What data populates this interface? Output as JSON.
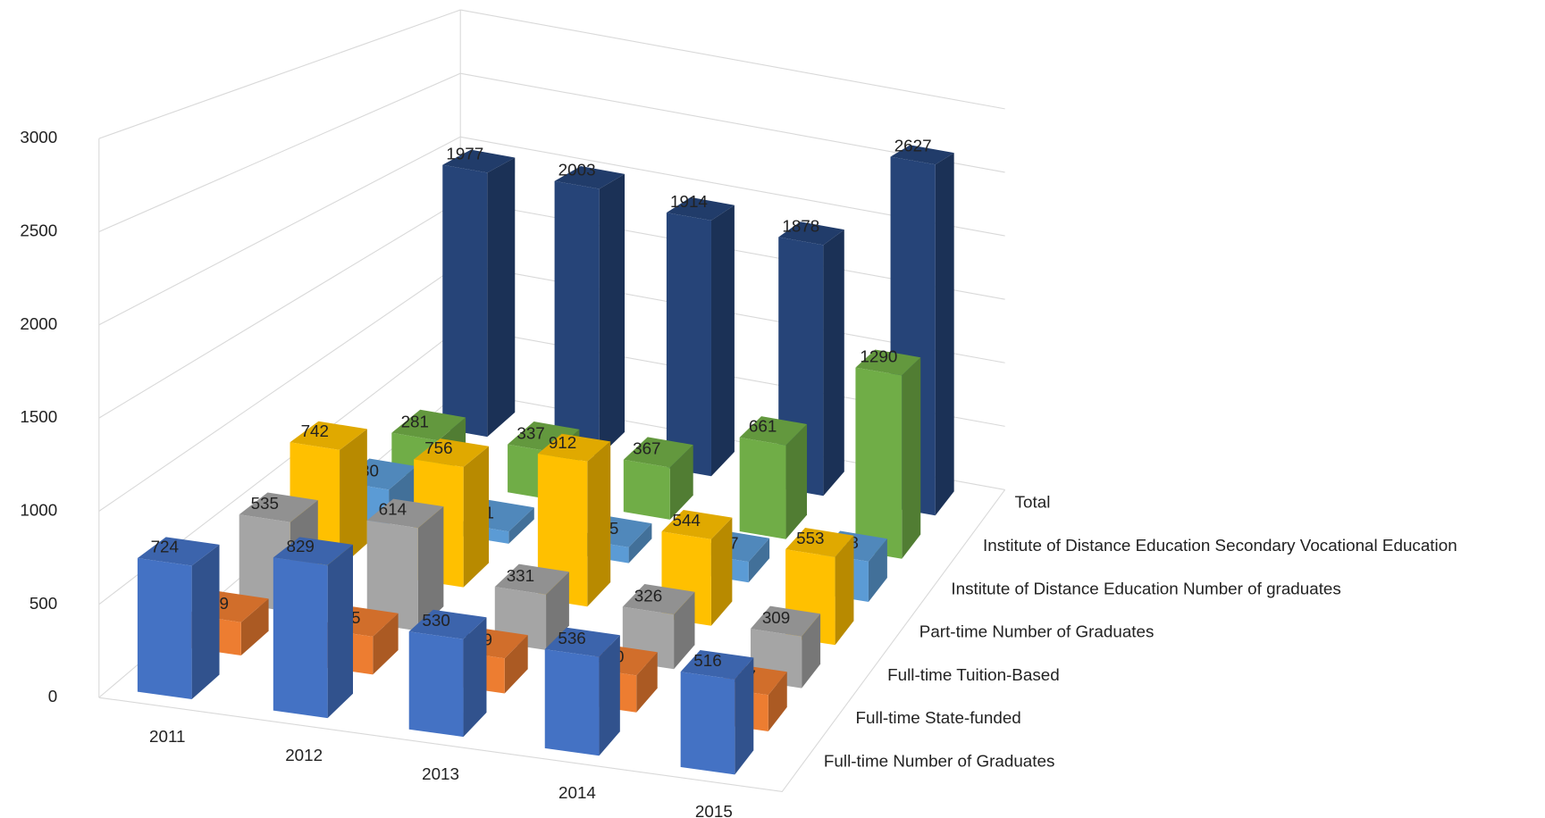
{
  "chart_data": {
    "type": "bar3d",
    "categories": [
      "2011",
      "2012",
      "2013",
      "2014",
      "2015"
    ],
    "series": [
      {
        "name": "Full-time Number of Graduates",
        "color": "#4472c4",
        "values": [
          724,
          829,
          530,
          536,
          516
        ]
      },
      {
        "name": "Full-time State-funded",
        "color": "#ed7d31",
        "values": [
          189,
          215,
          199,
          210,
          207
        ]
      },
      {
        "name": "Full-time Tuition-Based",
        "color": "#a5a5a5",
        "values": [
          535,
          614,
          331,
          326,
          309
        ]
      },
      {
        "name": "Part-time Number of Graduates",
        "color": "#ffc000",
        "values": [
          742,
          756,
          912,
          544,
          553
        ]
      },
      {
        "name": "Institute of Distance Education Number of graduates",
        "color": "#5b9bd5",
        "values": [
          230,
          81,
          105,
          137,
          268
        ]
      },
      {
        "name": "Institute of Distance Education Secondary Vocational Education",
        "color": "#70ad47",
        "values": [
          281,
          337,
          367,
          661,
          1290
        ]
      },
      {
        "name": "Total",
        "color": "#264478",
        "values": [
          1977,
          2003,
          1914,
          1878,
          2627
        ]
      }
    ],
    "ylim": [
      0,
      3000
    ],
    "yticks": [
      0,
      500,
      1000,
      1500,
      2000,
      2500,
      3000
    ],
    "grid": true
  }
}
